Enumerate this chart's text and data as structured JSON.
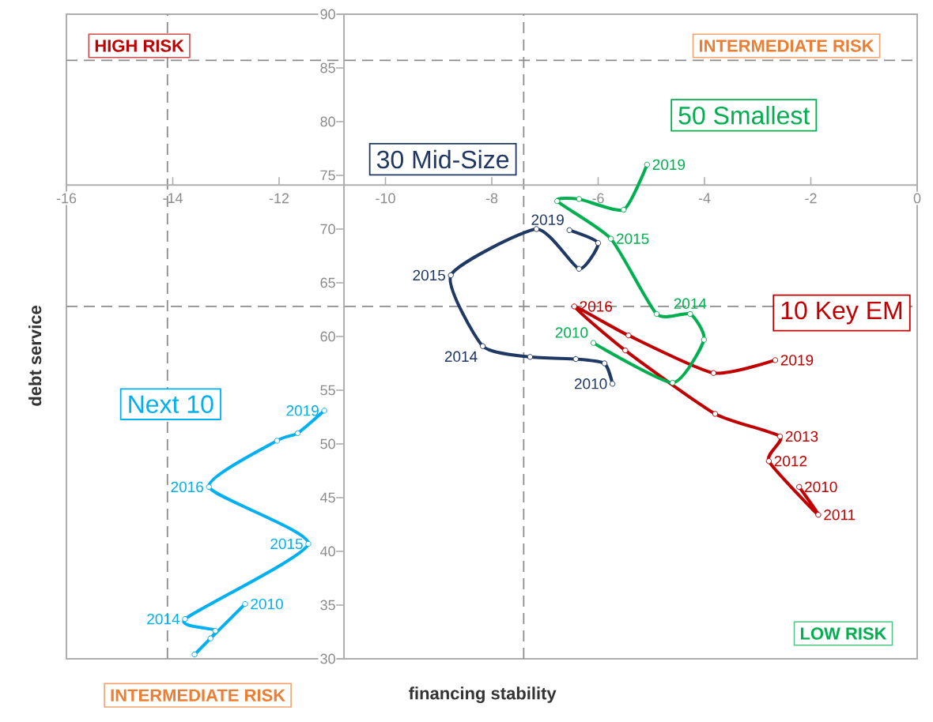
{
  "chart_data": {
    "type": "line",
    "xlabel": "financing stability",
    "ylabel": "debt service",
    "xlim": [
      -16,
      0
    ],
    "ylim": [
      30,
      90
    ],
    "xticks": [
      -16,
      -14,
      -12,
      -10,
      -8,
      -6,
      -4,
      -2,
      0
    ],
    "yticks": [
      30,
      35,
      40,
      45,
      50,
      55,
      60,
      65,
      70,
      75,
      80,
      85,
      90
    ],
    "marker": "circle",
    "ref_lines": [
      {
        "axis": "x",
        "value": -14.1
      },
      {
        "axis": "x",
        "value": -7.4
      },
      {
        "axis": "y",
        "value": 85.7
      },
      {
        "axis": "y",
        "value": 62.8
      }
    ],
    "series": [
      {
        "name": "10 Key EM",
        "color": "#c00000",
        "x": [
          -2.22,
          -1.86,
          -2.79,
          -2.58,
          -3.8,
          -5.49,
          -6.45,
          -5.43,
          -3.83,
          -2.67
        ],
        "values": [
          46.0,
          43.4,
          48.4,
          50.7,
          52.8,
          58.7,
          62.8,
          60.1,
          56.6,
          57.8
        ]
      },
      {
        "name": "50 Smallest",
        "color": "#00b050",
        "x": [
          -6.09,
          -4.6,
          -4.01,
          -4.27,
          -4.9,
          -5.76,
          -6.77,
          -6.36,
          -5.52,
          -5.08
        ],
        "values": [
          59.4,
          55.7,
          59.7,
          62.1,
          62.1,
          69.1,
          72.6,
          72.8,
          71.8,
          76.0
        ]
      },
      {
        "name": "30 Mid-Size",
        "color": "#1f3864",
        "x": [
          -5.73,
          -5.88,
          -6.42,
          -7.28,
          -8.17,
          -8.77,
          -7.16,
          -6.36,
          -6.0,
          -6.54
        ],
        "values": [
          55.6,
          57.5,
          57.9,
          58.1,
          59.1,
          65.7,
          70.0,
          66.3,
          68.7,
          69.9
        ]
      },
      {
        "name": "Next 10",
        "color": "#00b0f0",
        "x": [
          -12.64,
          -13.29,
          -13.59,
          -13.2,
          -13.77,
          -11.45,
          -13.32,
          -12.04,
          -11.65,
          -11.15
        ],
        "values": [
          35.1,
          31.9,
          30.4,
          32.6,
          33.7,
          40.7,
          46.0,
          50.3,
          51.0,
          53.1
        ]
      }
    ],
    "annotations": [
      "HIGH RISK",
      "INTERMEDIATE RISK",
      "LOW RISK",
      "INTERMEDIATE RISK",
      {
        "text": "2019",
        "x": -2.67,
        "y": 57.8
      },
      {
        "text": "2016",
        "x": -6.45,
        "y": 62.8
      },
      {
        "text": "2013",
        "x": -2.58,
        "y": 50.7
      },
      {
        "text": "2012",
        "x": -2.79,
        "y": 48.4
      },
      {
        "text": "2010",
        "x": -2.22,
        "y": 46.0
      },
      {
        "text": "2011",
        "x": -1.86,
        "y": 43.4
      },
      {
        "text": "2019",
        "x": -5.08,
        "y": 76.0
      },
      {
        "text": "2015",
        "x": -5.76,
        "y": 69.1
      },
      {
        "text": "2014",
        "x": -4.27,
        "y": 62.1
      },
      {
        "text": "2010",
        "x": -6.09,
        "y": 59.4
      },
      {
        "text": "2019",
        "x": -6.54,
        "y": 69.9
      },
      {
        "text": "2015",
        "x": -8.77,
        "y": 65.7
      },
      {
        "text": "2014",
        "x": -8.17,
        "y": 59.1
      },
      {
        "text": "2010",
        "x": -5.73,
        "y": 55.6
      },
      {
        "text": "2019",
        "x": -11.15,
        "y": 53.1
      },
      {
        "text": "2016",
        "x": -13.32,
        "y": 46.0
      },
      {
        "text": "2015",
        "x": -11.45,
        "y": 40.7
      },
      {
        "text": "2010",
        "x": -12.64,
        "y": 35.1
      },
      {
        "text": "2014",
        "x": -13.77,
        "y": 33.7
      }
    ]
  }
}
